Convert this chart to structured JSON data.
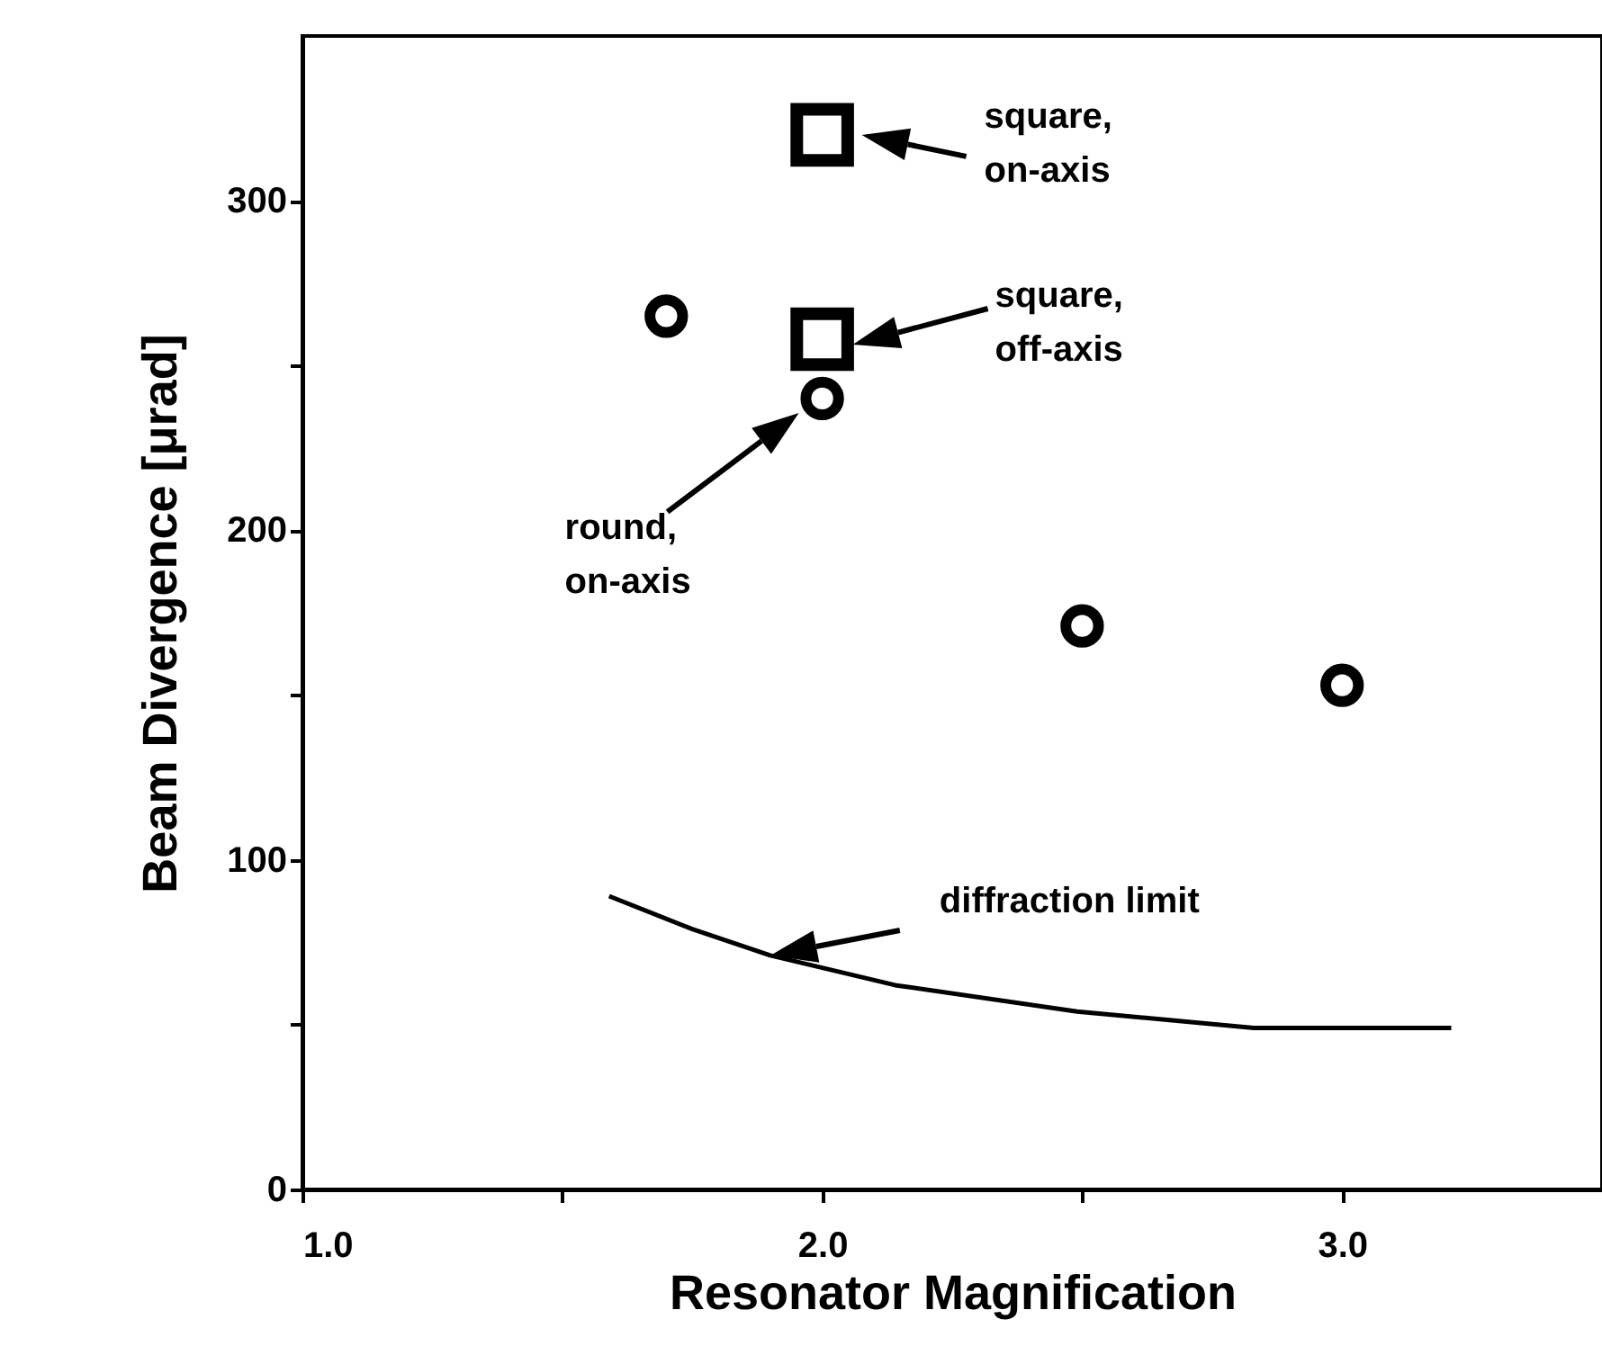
{
  "chart_data": {
    "type": "scatter",
    "xlabel": "Resonator Magnification",
    "ylabel": "Beam Divergence [μrad]",
    "xlim": [
      1.0,
      3.5
    ],
    "ylim": [
      0,
      350
    ],
    "xticks": [
      {
        "value": 1.0,
        "label": "1.0"
      },
      {
        "value": 1.5,
        "label": null
      },
      {
        "value": 2.0,
        "label": "2.0"
      },
      {
        "value": 2.5,
        "label": null
      },
      {
        "value": 3.0,
        "label": "3.0"
      }
    ],
    "yticks": [
      0,
      {
        "value": 50,
        "label": null
      },
      100,
      {
        "value": 150,
        "label": null
      },
      200,
      {
        "value": 250,
        "label": null
      },
      300
    ],
    "grid": false,
    "series": [
      {
        "marker": "circle",
        "color": "#000000",
        "x": [
          1.7,
          2.0,
          2.5,
          3.0
        ],
        "values": [
          265,
          240,
          171,
          153
        ]
      },
      {
        "marker": "square",
        "color": "#000000",
        "x": [
          2.0,
          2.0
        ],
        "values": [
          320,
          258
        ]
      },
      {
        "type": "line",
        "marker": "none",
        "line_style": "solid",
        "color": "#000000",
        "x": [
          1.59,
          1.75,
          1.9,
          2.14,
          2.49,
          2.83,
          3.21
        ],
        "values": [
          89,
          79,
          71,
          62,
          54,
          49,
          49
        ]
      }
    ],
    "annotations": [
      "square, on-axis",
      "square, off-axis",
      "round, on-axis",
      "diffraction limit"
    ]
  }
}
